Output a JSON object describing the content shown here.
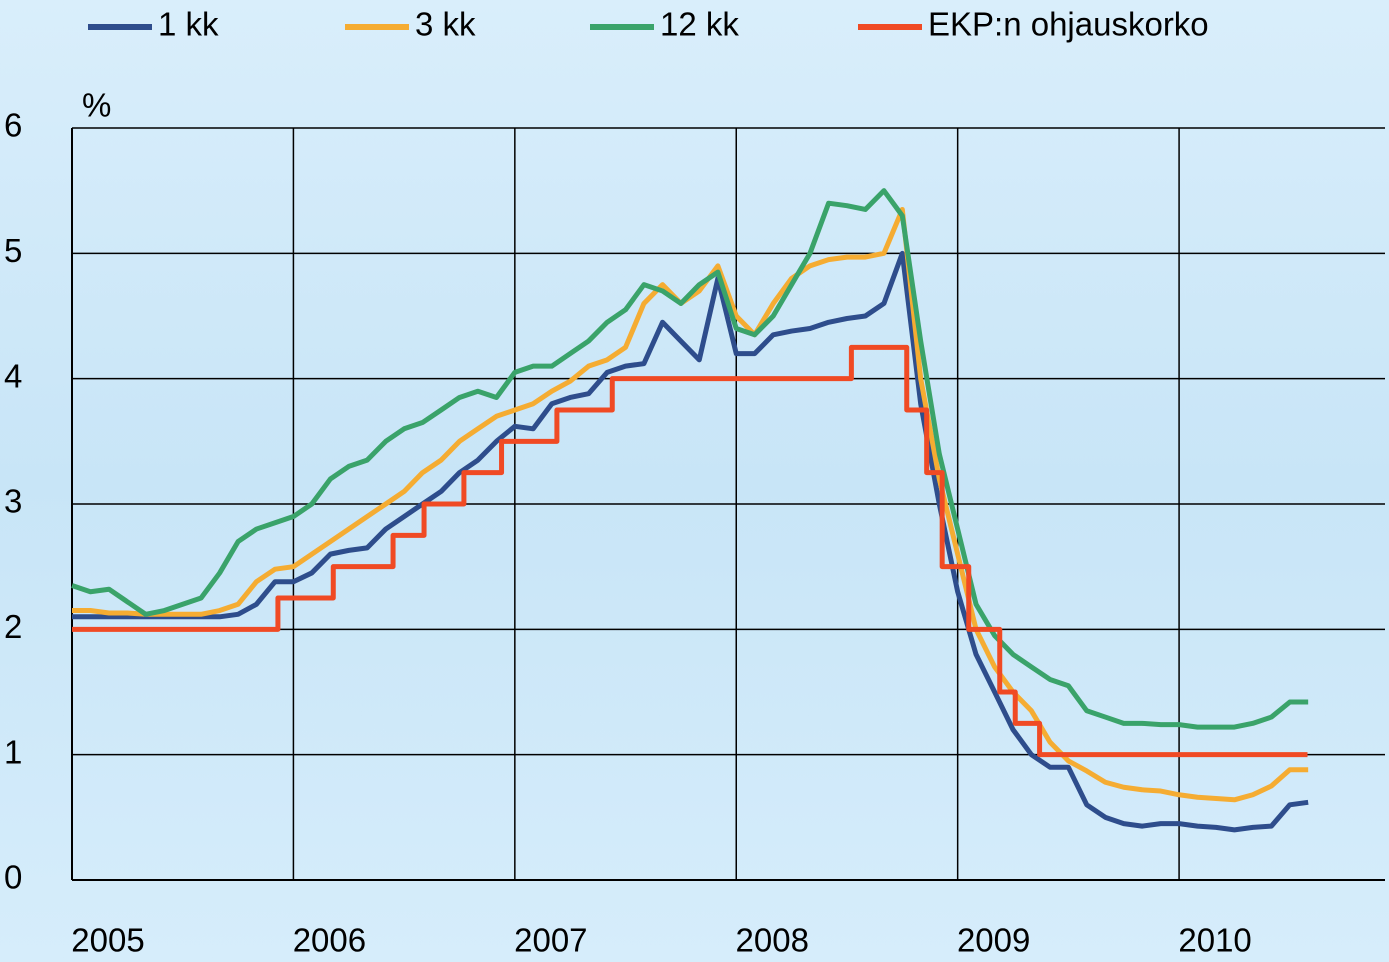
{
  "chart_data": {
    "type": "line",
    "ylabel": "%",
    "xlim": [
      2005,
      2010.93
    ],
    "xticks": [
      2005,
      2006,
      2007,
      2008,
      2009,
      2010
    ],
    "ylim": [
      0,
      6
    ],
    "yticks": [
      0,
      1,
      2,
      3,
      4,
      5,
      6
    ],
    "grid": true,
    "legend": "top",
    "x": [
      2005,
      2005.083,
      2005.167,
      2005.25,
      2005.333,
      2005.417,
      2005.5,
      2005.583,
      2005.667,
      2005.75,
      2005.833,
      2005.917,
      2006,
      2006.083,
      2006.167,
      2006.25,
      2006.333,
      2006.417,
      2006.5,
      2006.583,
      2006.667,
      2006.75,
      2006.833,
      2006.917,
      2007,
      2007.083,
      2007.167,
      2007.25,
      2007.333,
      2007.417,
      2007.5,
      2007.583,
      2007.667,
      2007.75,
      2007.833,
      2007.917,
      2008,
      2008.083,
      2008.167,
      2008.25,
      2008.333,
      2008.417,
      2008.5,
      2008.583,
      2008.667,
      2008.75,
      2008.833,
      2008.917,
      2009,
      2009.083,
      2009.167,
      2009.25,
      2009.333,
      2009.417,
      2009.5,
      2009.583,
      2009.667,
      2009.75,
      2009.833,
      2009.917,
      2010,
      2010.083,
      2010.167,
      2010.25,
      2010.333,
      2010.417,
      2010.5,
      2010.583
    ],
    "series": [
      {
        "name": "1 kk",
        "color": "#2e4d8c",
        "values": [
          2.1,
          2.1,
          2.1,
          2.1,
          2.1,
          2.1,
          2.1,
          2.1,
          2.1,
          2.12,
          2.2,
          2.38,
          2.38,
          2.45,
          2.6,
          2.63,
          2.65,
          2.8,
          2.9,
          3.0,
          3.1,
          3.25,
          3.35,
          3.5,
          3.62,
          3.6,
          3.8,
          3.85,
          3.88,
          4.05,
          4.1,
          4.12,
          4.45,
          4.3,
          4.15,
          4.8,
          4.2,
          4.2,
          4.35,
          4.38,
          4.4,
          4.45,
          4.48,
          4.5,
          4.6,
          5.0,
          3.8,
          3.0,
          2.3,
          1.8,
          1.5,
          1.2,
          1.0,
          0.9,
          0.9,
          0.6,
          0.5,
          0.45,
          0.43,
          0.45,
          0.45,
          0.43,
          0.42,
          0.4,
          0.42,
          0.43,
          0.6,
          0.62
        ]
      },
      {
        "name": "3 kk",
        "color": "#f5ac32",
        "values": [
          2.15,
          2.15,
          2.13,
          2.13,
          2.12,
          2.12,
          2.12,
          2.12,
          2.15,
          2.2,
          2.38,
          2.48,
          2.5,
          2.6,
          2.7,
          2.8,
          2.9,
          3.0,
          3.1,
          3.25,
          3.35,
          3.5,
          3.6,
          3.7,
          3.75,
          3.8,
          3.9,
          3.98,
          4.1,
          4.15,
          4.25,
          4.6,
          4.75,
          4.6,
          4.7,
          4.9,
          4.5,
          4.35,
          4.6,
          4.8,
          4.9,
          4.95,
          4.97,
          4.97,
          5.0,
          5.35,
          4.0,
          3.2,
          2.6,
          2.0,
          1.7,
          1.5,
          1.35,
          1.1,
          0.95,
          0.87,
          0.78,
          0.74,
          0.72,
          0.71,
          0.68,
          0.66,
          0.65,
          0.64,
          0.68,
          0.75,
          0.88,
          0.88
        ]
      },
      {
        "name": "12 kk",
        "color": "#3aa36a",
        "values": [
          2.35,
          2.3,
          2.32,
          2.22,
          2.12,
          2.15,
          2.2,
          2.25,
          2.45,
          2.7,
          2.8,
          2.85,
          2.9,
          3.0,
          3.2,
          3.3,
          3.35,
          3.5,
          3.6,
          3.65,
          3.75,
          3.85,
          3.9,
          3.85,
          4.05,
          4.1,
          4.1,
          4.2,
          4.3,
          4.45,
          4.55,
          4.75,
          4.7,
          4.6,
          4.75,
          4.85,
          4.4,
          4.35,
          4.5,
          4.75,
          5.0,
          5.4,
          5.38,
          5.35,
          5.5,
          5.3,
          4.3,
          3.4,
          2.8,
          2.2,
          1.95,
          1.8,
          1.7,
          1.6,
          1.55,
          1.35,
          1.3,
          1.25,
          1.25,
          1.24,
          1.24,
          1.22,
          1.22,
          1.22,
          1.25,
          1.3,
          1.42,
          1.42
        ]
      },
      {
        "name": "EKP:n ohjauskorko",
        "color": "#f04a24",
        "drawstyle": "steps-post",
        "x": [
          2005,
          2005.93,
          2006.18,
          2006.45,
          2006.59,
          2006.77,
          2006.94,
          2007.19,
          2007.44,
          2008.52,
          2008.77,
          2008.86,
          2008.93,
          2009.05,
          2009.19,
          2009.26,
          2009.37,
          2010.58
        ],
        "values": [
          2,
          2.25,
          2.5,
          2.75,
          3,
          3.25,
          3.5,
          3.75,
          4,
          4.25,
          3.75,
          3.25,
          2.5,
          2,
          1.5,
          1.25,
          1,
          1
        ]
      }
    ]
  }
}
